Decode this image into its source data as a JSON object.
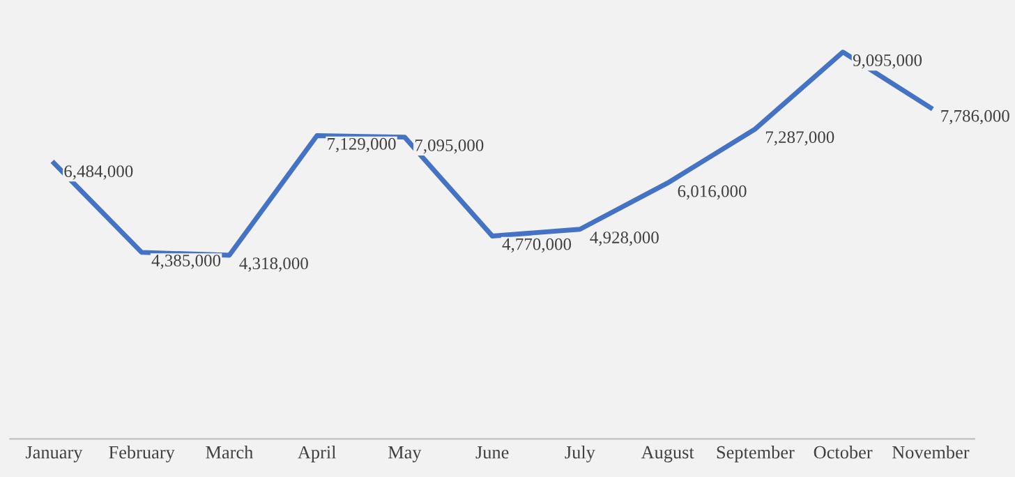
{
  "chart_data": {
    "type": "line",
    "categories": [
      "January",
      "February",
      "March",
      "April",
      "May",
      "June",
      "July",
      "August",
      "September",
      "October",
      "November"
    ],
    "series": [
      {
        "color": "#4472c4",
        "values": [
          6484000,
          4385000,
          4318000,
          7129000,
          7095000,
          4770000,
          4928000,
          6016000,
          7287000,
          9095000,
          7786000
        ],
        "value_labels": [
          "6,484,000",
          "4,385,000",
          "4,318,000",
          "7,129,000",
          "7,095,000",
          "4,770,000",
          "4,928,000",
          "6,016,000",
          "7,287,000",
          "9,095,000",
          "7,786,000"
        ]
      }
    ],
    "grid": false,
    "legend": false,
    "marker": "none",
    "line_style": "solid",
    "tick_labels": "x"
  }
}
